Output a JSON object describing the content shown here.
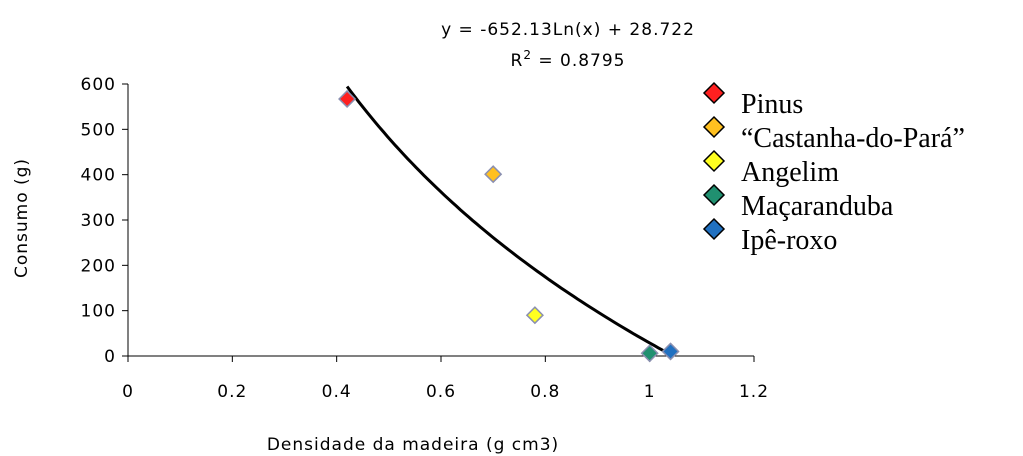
{
  "chart_data": {
    "type": "scatter",
    "xlabel": "Densidade da madeira (g cm3)",
    "ylabel": "Consumo (g)",
    "xlim": [
      0,
      1.2
    ],
    "ylim": [
      0,
      600
    ],
    "x_ticks": [
      0,
      0.2,
      0.4,
      0.6,
      0.8,
      1,
      1.2
    ],
    "y_ticks": [
      0,
      100,
      200,
      300,
      400,
      500,
      600
    ],
    "grid": false,
    "legend_position": "right",
    "series": [
      {
        "name": "Pinus",
        "color": "#ff2020",
        "points": [
          {
            "x": 0.42,
            "y": 567
          }
        ]
      },
      {
        "name": "“Castanha-do-Pará”",
        "color": "#ffc020",
        "points": [
          {
            "x": 0.7,
            "y": 401
          }
        ]
      },
      {
        "name": "Angelim",
        "color": "#ffff20",
        "points": [
          {
            "x": 0.78,
            "y": 90
          }
        ]
      },
      {
        "name": "Maçaranduba",
        "color": "#209070",
        "points": [
          {
            "x": 1.0,
            "y": 6
          }
        ]
      },
      {
        "name": "Ipê-roxo",
        "color": "#2070c0",
        "points": [
          {
            "x": 1.04,
            "y": 10
          }
        ]
      }
    ],
    "trendline": {
      "type": "logarithmic",
      "a": -652.13,
      "b": 28.722,
      "x_range": [
        0.42,
        1.04
      ],
      "equation": "y = -652.13Ln(x) + 28.722",
      "r2_label": "R",
      "r2_exponent": "2",
      "r2_value": " = 0.8795"
    }
  }
}
